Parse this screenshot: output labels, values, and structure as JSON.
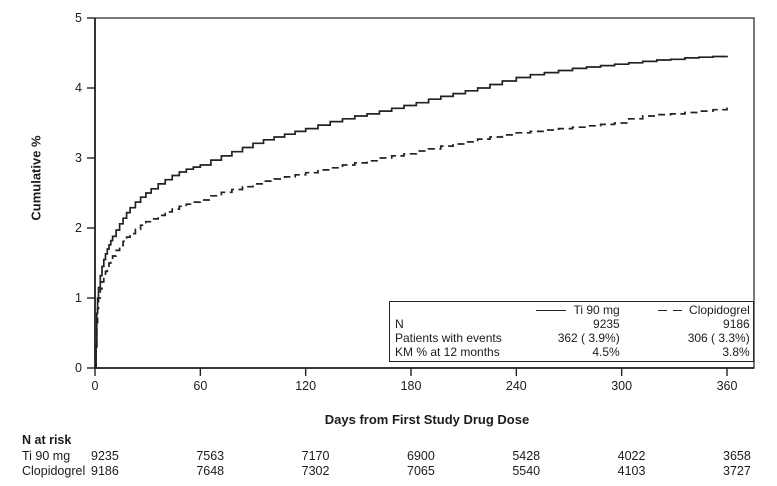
{
  "figure": {
    "background": "#ffffff",
    "ink": "#222222"
  },
  "chart_data": {
    "type": "line",
    "subtype": "kaplan-meier-step",
    "title": "",
    "xlabel": "Days from First Study Drug Dose",
    "ylabel": "Cumulative %",
    "xlim": [
      0,
      376
    ],
    "ylim": [
      0,
      5
    ],
    "x_ticks": [
      0,
      60,
      120,
      180,
      240,
      300,
      360
    ],
    "y_ticks": [
      0,
      1,
      2,
      3,
      4,
      5
    ],
    "grid": false,
    "legend_position": "inside-bottom-right",
    "series": [
      {
        "name": "Ti 90 mg",
        "style": "solid",
        "color": "#222222",
        "points": [
          [
            0,
            0
          ],
          [
            0.6,
            0.3
          ],
          [
            1,
            0.78
          ],
          [
            1.5,
            1.0
          ],
          [
            2,
            1.15
          ],
          [
            3,
            1.32
          ],
          [
            4,
            1.45
          ],
          [
            5,
            1.55
          ],
          [
            6,
            1.63
          ],
          [
            7,
            1.7
          ],
          [
            8,
            1.76
          ],
          [
            9,
            1.82
          ],
          [
            10,
            1.88
          ],
          [
            12,
            1.97
          ],
          [
            14,
            2.06
          ],
          [
            16,
            2.14
          ],
          [
            18,
            2.22
          ],
          [
            20,
            2.29
          ],
          [
            23,
            2.37
          ],
          [
            26,
            2.44
          ],
          [
            29,
            2.5
          ],
          [
            32,
            2.56
          ],
          [
            36,
            2.63
          ],
          [
            40,
            2.69
          ],
          [
            44,
            2.75
          ],
          [
            48,
            2.8
          ],
          [
            52,
            2.84
          ],
          [
            56,
            2.87
          ],
          [
            60,
            2.9
          ],
          [
            66,
            2.97
          ],
          [
            72,
            3.03
          ],
          [
            78,
            3.09
          ],
          [
            84,
            3.15
          ],
          [
            90,
            3.21
          ],
          [
            96,
            3.26
          ],
          [
            102,
            3.3
          ],
          [
            108,
            3.34
          ],
          [
            114,
            3.38
          ],
          [
            120,
            3.42
          ],
          [
            127,
            3.47
          ],
          [
            134,
            3.52
          ],
          [
            141,
            3.56
          ],
          [
            148,
            3.6
          ],
          [
            155,
            3.63
          ],
          [
            162,
            3.67
          ],
          [
            169,
            3.71
          ],
          [
            176,
            3.75
          ],
          [
            183,
            3.79
          ],
          [
            190,
            3.84
          ],
          [
            197,
            3.88
          ],
          [
            204,
            3.92
          ],
          [
            211,
            3.96
          ],
          [
            218,
            4.0
          ],
          [
            225,
            4.05
          ],
          [
            232,
            4.1
          ],
          [
            240,
            4.15
          ],
          [
            248,
            4.19
          ],
          [
            256,
            4.22
          ],
          [
            264,
            4.25
          ],
          [
            272,
            4.28
          ],
          [
            280,
            4.3
          ],
          [
            288,
            4.32
          ],
          [
            296,
            4.34
          ],
          [
            304,
            4.36
          ],
          [
            312,
            4.38
          ],
          [
            320,
            4.4
          ],
          [
            328,
            4.41
          ],
          [
            336,
            4.43
          ],
          [
            344,
            4.44
          ],
          [
            352,
            4.45
          ],
          [
            360,
            4.46
          ]
        ]
      },
      {
        "name": "Clopidogrel",
        "style": "dashed",
        "color": "#222222",
        "points": [
          [
            0,
            0
          ],
          [
            0.6,
            0.25
          ],
          [
            1,
            0.65
          ],
          [
            1.5,
            0.85
          ],
          [
            2,
            1.0
          ],
          [
            3,
            1.13
          ],
          [
            4,
            1.23
          ],
          [
            5,
            1.31
          ],
          [
            6,
            1.38
          ],
          [
            7,
            1.44
          ],
          [
            8,
            1.5
          ],
          [
            9,
            1.55
          ],
          [
            10,
            1.6
          ],
          [
            12,
            1.68
          ],
          [
            14,
            1.75
          ],
          [
            16,
            1.81
          ],
          [
            18,
            1.87
          ],
          [
            20,
            1.92
          ],
          [
            23,
            1.98
          ],
          [
            26,
            2.04
          ],
          [
            29,
            2.09
          ],
          [
            32,
            2.13
          ],
          [
            36,
            2.18
          ],
          [
            40,
            2.23
          ],
          [
            44,
            2.27
          ],
          [
            48,
            2.31
          ],
          [
            52,
            2.34
          ],
          [
            56,
            2.37
          ],
          [
            60,
            2.4
          ],
          [
            66,
            2.46
          ],
          [
            72,
            2.51
          ],
          [
            78,
            2.55
          ],
          [
            84,
            2.59
          ],
          [
            90,
            2.63
          ],
          [
            96,
            2.67
          ],
          [
            102,
            2.7
          ],
          [
            108,
            2.73
          ],
          [
            114,
            2.76
          ],
          [
            120,
            2.79
          ],
          [
            127,
            2.83
          ],
          [
            134,
            2.86
          ],
          [
            141,
            2.9
          ],
          [
            148,
            2.93
          ],
          [
            155,
            2.96
          ],
          [
            162,
            3.0
          ],
          [
            169,
            3.03
          ],
          [
            176,
            3.06
          ],
          [
            183,
            3.1
          ],
          [
            190,
            3.13
          ],
          [
            197,
            3.17
          ],
          [
            204,
            3.2
          ],
          [
            211,
            3.23
          ],
          [
            218,
            3.27
          ],
          [
            225,
            3.3
          ],
          [
            232,
            3.33
          ],
          [
            240,
            3.36
          ],
          [
            248,
            3.38
          ],
          [
            256,
            3.4
          ],
          [
            264,
            3.42
          ],
          [
            272,
            3.44
          ],
          [
            280,
            3.46
          ],
          [
            288,
            3.48
          ],
          [
            296,
            3.5
          ],
          [
            304,
            3.56
          ],
          [
            312,
            3.6
          ],
          [
            320,
            3.62
          ],
          [
            328,
            3.63
          ],
          [
            336,
            3.65
          ],
          [
            344,
            3.67
          ],
          [
            352,
            3.69
          ],
          [
            360,
            3.76
          ]
        ]
      }
    ]
  },
  "legend": {
    "entries": [
      {
        "label": "Ti 90 mg",
        "line": "solid"
      },
      {
        "label": "Clopidogrel",
        "line": "dashed"
      }
    ],
    "rows": [
      {
        "label": "N",
        "ti90": "9235",
        "clopidogrel": "9186"
      },
      {
        "label": "Patients with events",
        "ti90": "362 ( 3.9%)",
        "clopidogrel": "306 ( 3.3%)"
      },
      {
        "label": "KM % at 12 months",
        "ti90": "4.5%",
        "clopidogrel": "3.8%"
      }
    ]
  },
  "risk_table": {
    "header": "N at risk",
    "days": [
      0,
      60,
      120,
      180,
      240,
      300,
      360
    ],
    "rows": [
      {
        "label": "Ti 90 mg",
        "values": [
          "9235",
          "7563",
          "7170",
          "6900",
          "5428",
          "4022",
          "3658"
        ]
      },
      {
        "label": "Clopidogrel",
        "values": [
          "9186",
          "7648",
          "7302",
          "7065",
          "5540",
          "4103",
          "3727"
        ]
      }
    ]
  }
}
